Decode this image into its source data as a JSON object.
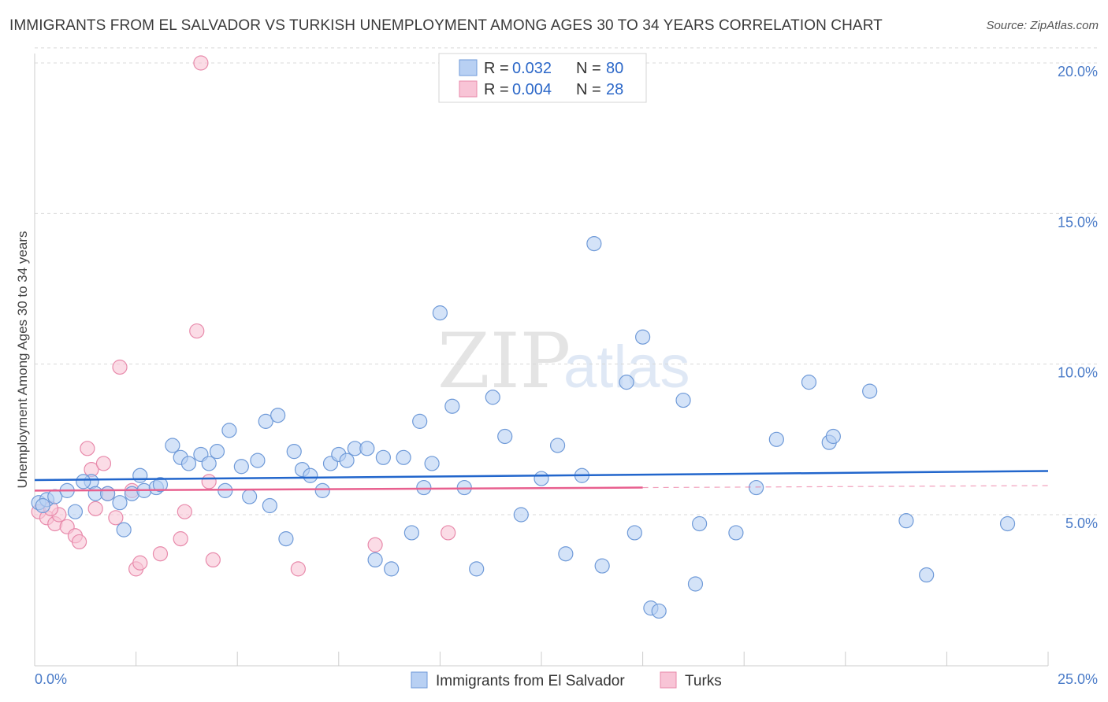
{
  "header": {
    "title": "IMMIGRANTS FROM EL SALVADOR VS TURKISH UNEMPLOYMENT AMONG AGES 30 TO 34 YEARS CORRELATION CHART",
    "source": "Source: ZipAtlas.com"
  },
  "watermark": {
    "zip": "ZIP",
    "atlas": "atlas"
  },
  "colors": {
    "blue_fill": "#b8d0f3",
    "blue_stroke": "#6f9ad8",
    "blue_line": "#2266cc",
    "pink_fill": "#f8c4d6",
    "pink_stroke": "#e88aab",
    "pink_line": "#e8608f",
    "tick_text": "#4a7bc8",
    "grid": "#d8d8d8"
  },
  "legend": {
    "rows": [
      {
        "r_label": "R =",
        "r_value": "0.032",
        "n_label": "N =",
        "n_value": "80"
      },
      {
        "r_label": "R =",
        "r_value": "0.004",
        "n_label": "N =",
        "n_value": "28"
      }
    ]
  },
  "chart_data": {
    "type": "scatter",
    "title": "IMMIGRANTS FROM EL SALVADOR VS TURKISH UNEMPLOYMENT AMONG AGES 30 TO 34 YEARS CORRELATION CHART",
    "xlabel": "",
    "ylabel": "Unemployment Among Ages 30 to 34 years",
    "xlim": [
      0,
      25
    ],
    "ylim": [
      0,
      20.5
    ],
    "x_tick_labels": [
      "0.0%",
      "25.0%"
    ],
    "y_ticks": [
      5,
      10,
      15,
      20
    ],
    "y_tick_labels": [
      "5.0%",
      "10.0%",
      "15.0%",
      "20.0%"
    ],
    "legend_position": "top-center",
    "series": [
      {
        "name": "Immigrants from El Salvador",
        "r": 0.032,
        "n": 80,
        "trend": {
          "x": [
            0,
            25
          ],
          "y": [
            6.15,
            6.45
          ]
        },
        "points": [
          [
            0.1,
            5.4
          ],
          [
            0.3,
            5.5
          ],
          [
            0.5,
            5.6
          ],
          [
            0.8,
            5.8
          ],
          [
            1.0,
            5.1
          ],
          [
            1.4,
            6.1
          ],
          [
            1.5,
            5.7
          ],
          [
            1.8,
            5.7
          ],
          [
            2.1,
            5.4
          ],
          [
            2.2,
            4.5
          ],
          [
            2.4,
            5.7
          ],
          [
            2.6,
            6.3
          ],
          [
            2.7,
            5.8
          ],
          [
            3.0,
            5.9
          ],
          [
            3.1,
            6.0
          ],
          [
            3.4,
            7.3
          ],
          [
            3.6,
            6.9
          ],
          [
            3.8,
            6.7
          ],
          [
            4.1,
            7.0
          ],
          [
            4.3,
            6.7
          ],
          [
            4.5,
            7.1
          ],
          [
            4.7,
            5.8
          ],
          [
            4.8,
            7.8
          ],
          [
            5.1,
            6.6
          ],
          [
            5.3,
            5.6
          ],
          [
            5.5,
            6.8
          ],
          [
            5.7,
            8.1
          ],
          [
            5.8,
            5.3
          ],
          [
            6.0,
            8.3
          ],
          [
            6.2,
            4.2
          ],
          [
            6.4,
            7.1
          ],
          [
            6.6,
            6.5
          ],
          [
            6.8,
            6.3
          ],
          [
            7.1,
            5.8
          ],
          [
            7.3,
            6.7
          ],
          [
            7.5,
            7.0
          ],
          [
            7.7,
            6.8
          ],
          [
            7.9,
            7.2
          ],
          [
            8.2,
            7.2
          ],
          [
            8.4,
            3.5
          ],
          [
            8.6,
            6.9
          ],
          [
            8.8,
            3.2
          ],
          [
            9.1,
            6.9
          ],
          [
            9.3,
            4.4
          ],
          [
            9.5,
            8.1
          ],
          [
            9.6,
            5.9
          ],
          [
            9.8,
            6.7
          ],
          [
            10.0,
            11.7
          ],
          [
            10.3,
            8.6
          ],
          [
            10.6,
            5.9
          ],
          [
            10.9,
            3.2
          ],
          [
            11.3,
            8.9
          ],
          [
            11.6,
            7.6
          ],
          [
            12.0,
            5.0
          ],
          [
            12.5,
            6.2
          ],
          [
            12.9,
            7.3
          ],
          [
            13.1,
            3.7
          ],
          [
            13.5,
            6.3
          ],
          [
            13.8,
            14.0
          ],
          [
            14.0,
            3.3
          ],
          [
            14.6,
            9.4
          ],
          [
            14.8,
            4.4
          ],
          [
            15.0,
            10.9
          ],
          [
            15.2,
            1.9
          ],
          [
            15.4,
            1.8
          ],
          [
            16.0,
            8.8
          ],
          [
            16.3,
            2.7
          ],
          [
            16.4,
            4.7
          ],
          [
            17.3,
            4.4
          ],
          [
            17.8,
            5.9
          ],
          [
            18.3,
            7.5
          ],
          [
            19.1,
            9.4
          ],
          [
            19.6,
            7.4
          ],
          [
            19.7,
            7.6
          ],
          [
            20.6,
            9.1
          ],
          [
            21.5,
            4.8
          ],
          [
            22.0,
            3.0
          ],
          [
            24.0,
            4.7
          ],
          [
            0.2,
            5.3
          ],
          [
            1.2,
            6.1
          ]
        ]
      },
      {
        "name": "Turks",
        "r": 0.004,
        "n": 28,
        "trend": {
          "x": [
            0,
            15
          ],
          "y": [
            5.8,
            5.9
          ]
        },
        "points": [
          [
            0.1,
            5.1
          ],
          [
            0.3,
            4.9
          ],
          [
            0.5,
            4.7
          ],
          [
            0.6,
            5.0
          ],
          [
            0.8,
            4.6
          ],
          [
            1.0,
            4.3
          ],
          [
            1.1,
            4.1
          ],
          [
            1.3,
            7.2
          ],
          [
            1.4,
            6.5
          ],
          [
            1.5,
            5.2
          ],
          [
            1.7,
            6.7
          ],
          [
            1.8,
            5.7
          ],
          [
            2.0,
            4.9
          ],
          [
            2.1,
            9.9
          ],
          [
            2.4,
            5.8
          ],
          [
            2.5,
            3.2
          ],
          [
            2.6,
            3.4
          ],
          [
            3.1,
            3.7
          ],
          [
            3.6,
            4.2
          ],
          [
            3.7,
            5.1
          ],
          [
            4.0,
            11.1
          ],
          [
            4.1,
            20.0
          ],
          [
            4.3,
            6.1
          ],
          [
            4.4,
            3.5
          ],
          [
            6.5,
            3.2
          ],
          [
            8.4,
            4.0
          ],
          [
            10.2,
            4.4
          ],
          [
            0.4,
            5.2
          ]
        ]
      }
    ]
  },
  "bottom_legend": {
    "items": [
      {
        "label": "Immigrants from El Salvador"
      },
      {
        "label": "Turks"
      }
    ]
  }
}
